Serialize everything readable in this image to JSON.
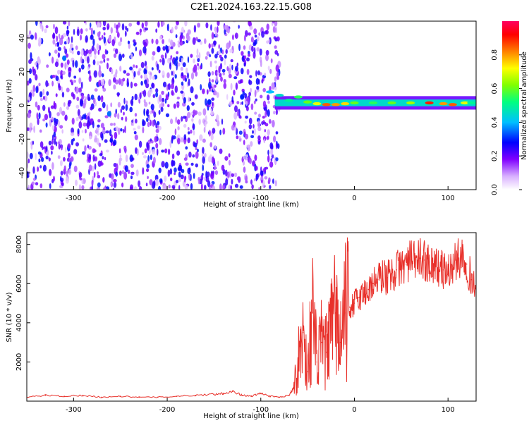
{
  "title": "C2E1.2024.163.22.15.G08",
  "chart_data": [
    {
      "type": "heatmap",
      "title": "",
      "xlabel": "Height of straight line (km)",
      "ylabel": "Frequency (Hz)",
      "xlim": [
        -350,
        130
      ],
      "ylim": [
        -50,
        50
      ],
      "x_ticks": [
        -300,
        -200,
        -100,
        0,
        100
      ],
      "y_ticks": [
        -40,
        -20,
        0,
        20,
        40
      ],
      "colorbar": {
        "label": "Normalized spectral amplitude",
        "range": [
          0.0,
          1.0
        ],
        "ticks": [
          0.0,
          0.2,
          0.4,
          0.6,
          0.8
        ],
        "colors": [
          "#ffffff",
          "#d8b0ff",
          "#8000ff",
          "#0000ff",
          "#00c0ff",
          "#00ff80",
          "#80ff00",
          "#ffff00",
          "#ff8000",
          "#ff0000",
          "#ff0060"
        ]
      },
      "noise_region": {
        "x": [
          -350,
          -80
        ],
        "y": [
          -50,
          50
        ],
        "amplitude_range": [
          0.05,
          0.3
        ]
      },
      "signal_band": {
        "x": [
          -85,
          130
        ],
        "frequency": 1.5,
        "peak_amplitude": 0.9
      },
      "signal_points": [
        {
          "x": -90,
          "y": 8,
          "a": 0.4
        },
        {
          "x": -80,
          "y": 6,
          "a": 0.45
        },
        {
          "x": -70,
          "y": 3,
          "a": 0.5
        },
        {
          "x": -60,
          "y": 5,
          "a": 0.55
        },
        {
          "x": -50,
          "y": 2,
          "a": 0.6
        },
        {
          "x": -40,
          "y": 1,
          "a": 0.7
        },
        {
          "x": -30,
          "y": 0.5,
          "a": 0.85
        },
        {
          "x": -20,
          "y": 0.5,
          "a": 0.8
        },
        {
          "x": -10,
          "y": 1,
          "a": 0.75
        },
        {
          "x": 0,
          "y": 1.5,
          "a": 0.6
        },
        {
          "x": 20,
          "y": 1.5,
          "a": 0.55
        },
        {
          "x": 40,
          "y": 1.5,
          "a": 0.6
        },
        {
          "x": 60,
          "y": 1.5,
          "a": 0.65
        },
        {
          "x": 80,
          "y": 1.5,
          "a": 0.9
        },
        {
          "x": 95,
          "y": 1.0,
          "a": 0.8
        },
        {
          "x": 105,
          "y": 0.5,
          "a": 0.85
        },
        {
          "x": 118,
          "y": 1.5,
          "a": 0.7
        },
        {
          "x": 125,
          "y": 1.5,
          "a": 0.5
        }
      ],
      "bright_features": [
        {
          "x": -310,
          "y": 28,
          "a": 0.35
        },
        {
          "x": -262,
          "y": -5,
          "a": 0.35
        },
        {
          "x": -155,
          "y": 2,
          "a": 0.3
        },
        {
          "x": -120,
          "y": 5,
          "a": 0.3
        }
      ]
    },
    {
      "type": "line",
      "title": "",
      "xlabel": "Height of straight line (km)",
      "ylabel": "SNR (10 * v/v)",
      "xlim": [
        -350,
        130
      ],
      "ylim": [
        0,
        8600
      ],
      "x_ticks": [
        -300,
        -200,
        -100,
        0,
        100
      ],
      "y_ticks": [
        2000,
        4000,
        6000,
        8000
      ],
      "series": [
        {
          "color": "#e8302a",
          "x": [
            -350,
            -330,
            -310,
            -290,
            -270,
            -250,
            -230,
            -210,
            -190,
            -170,
            -150,
            -140,
            -130,
            -120,
            -110,
            -100,
            -90,
            -80,
            -70,
            -65,
            -60,
            -55,
            -50,
            -45,
            -40,
            -35,
            -30,
            -25,
            -20,
            -15,
            -10,
            -5,
            0,
            5,
            10,
            15,
            20,
            25,
            30,
            35,
            40,
            45,
            50,
            55,
            60,
            65,
            70,
            75,
            80,
            85,
            90,
            95,
            100,
            105,
            110,
            115,
            120,
            125,
            130
          ],
          "y": [
            200,
            300,
            250,
            300,
            200,
            250,
            200,
            200,
            250,
            300,
            350,
            400,
            500,
            300,
            250,
            400,
            250,
            200,
            300,
            700,
            2000,
            3500,
            1500,
            4500,
            2000,
            3000,
            2500,
            3500,
            4500,
            3000,
            4500,
            4800,
            5000,
            5300,
            5500,
            5700,
            6000,
            6200,
            6400,
            6300,
            6500,
            6700,
            6900,
            7000,
            7200,
            7100,
            7300,
            7200,
            7100,
            7000,
            6800,
            6700,
            6600,
            6900,
            7200,
            7500,
            7000,
            6200,
            5800
          ]
        }
      ]
    }
  ]
}
